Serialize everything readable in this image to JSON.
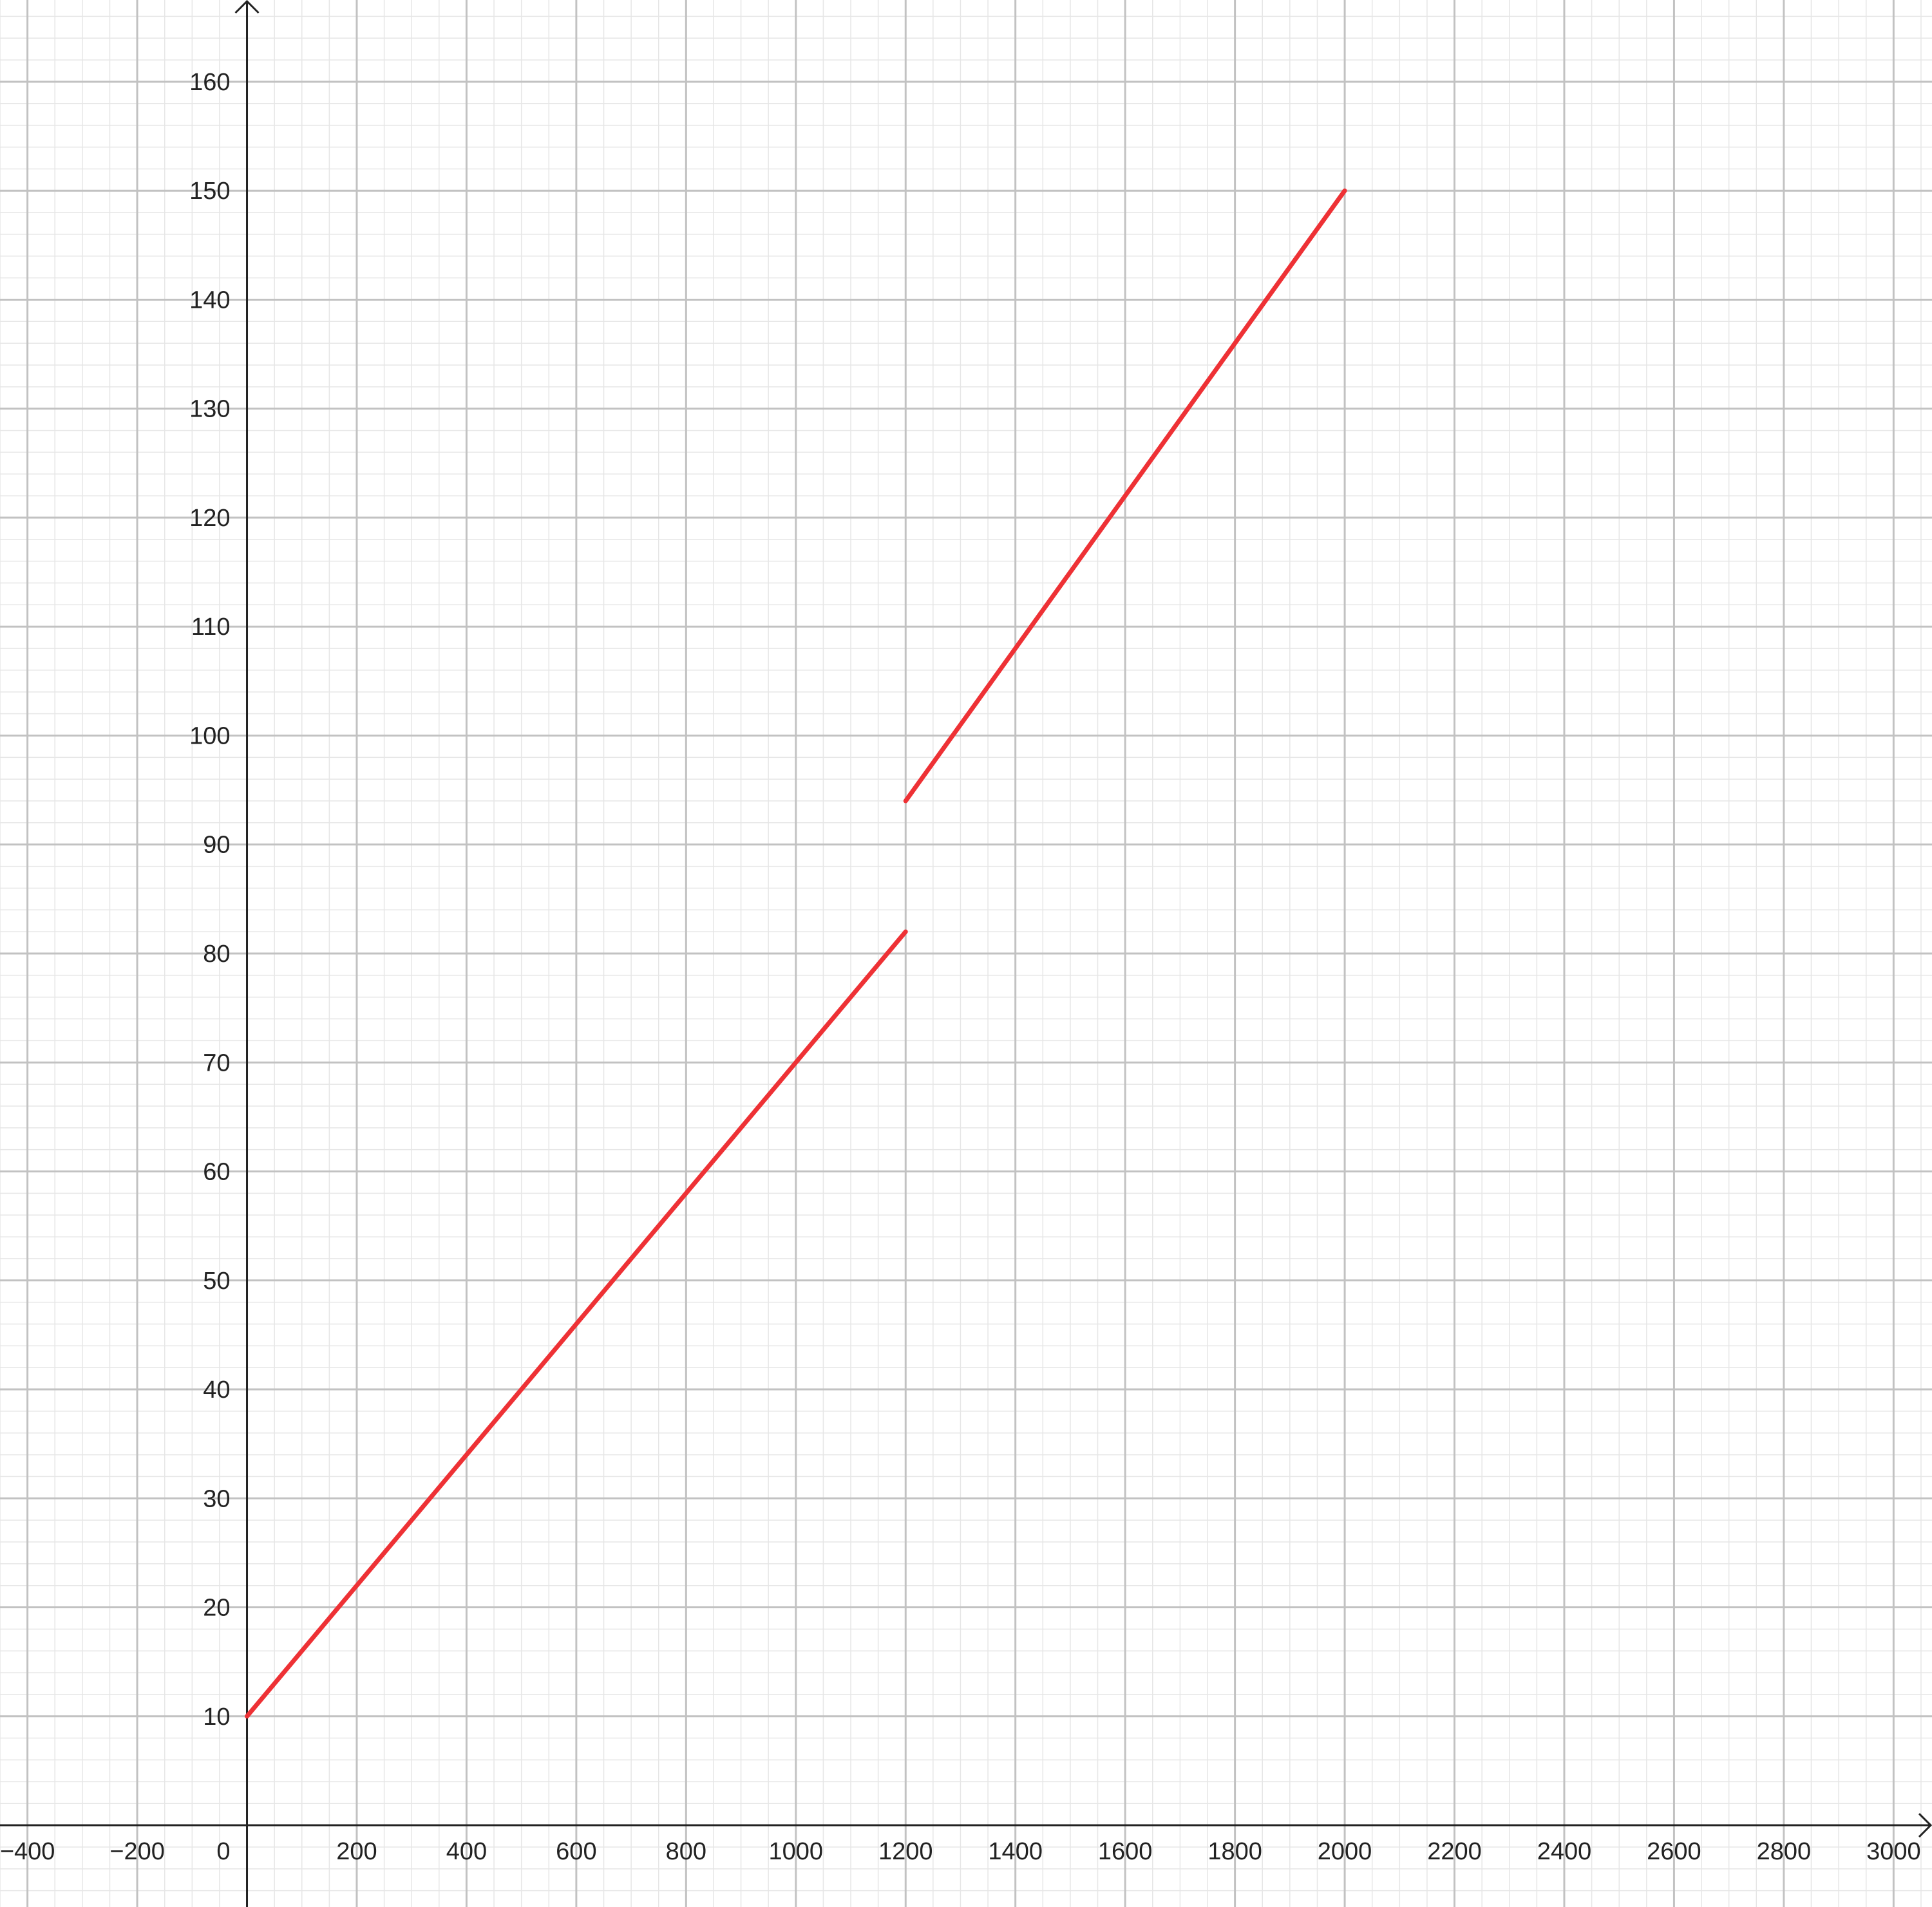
{
  "chart_data": {
    "type": "line",
    "title": "",
    "xlabel": "",
    "ylabel": "",
    "xlim": [
      -450,
      3070
    ],
    "ylim": [
      -7.5,
      167.5
    ],
    "grid": true,
    "x_major_step": 200,
    "x_minor_step": 50,
    "y_major_step": 10,
    "y_minor_step": 2,
    "x_tick_labels": [
      "−400",
      "−200",
      "0",
      "200",
      "400",
      "600",
      "800",
      "1000",
      "1200",
      "1400",
      "1600",
      "1800",
      "2000",
      "2200",
      "2400",
      "2600",
      "2800",
      "3000"
    ],
    "y_tick_labels": [
      "10",
      "20",
      "30",
      "40",
      "50",
      "60",
      "70",
      "80",
      "90",
      "100",
      "110",
      "120",
      "130",
      "140",
      "150",
      "160"
    ],
    "series": [
      {
        "color": "#ee3135",
        "x": [
          0,
          1200
        ],
        "y": [
          10,
          82
        ]
      },
      {
        "color": "#ee3135",
        "x": [
          1200,
          2000
        ],
        "y": [
          94,
          150
        ]
      }
    ]
  }
}
